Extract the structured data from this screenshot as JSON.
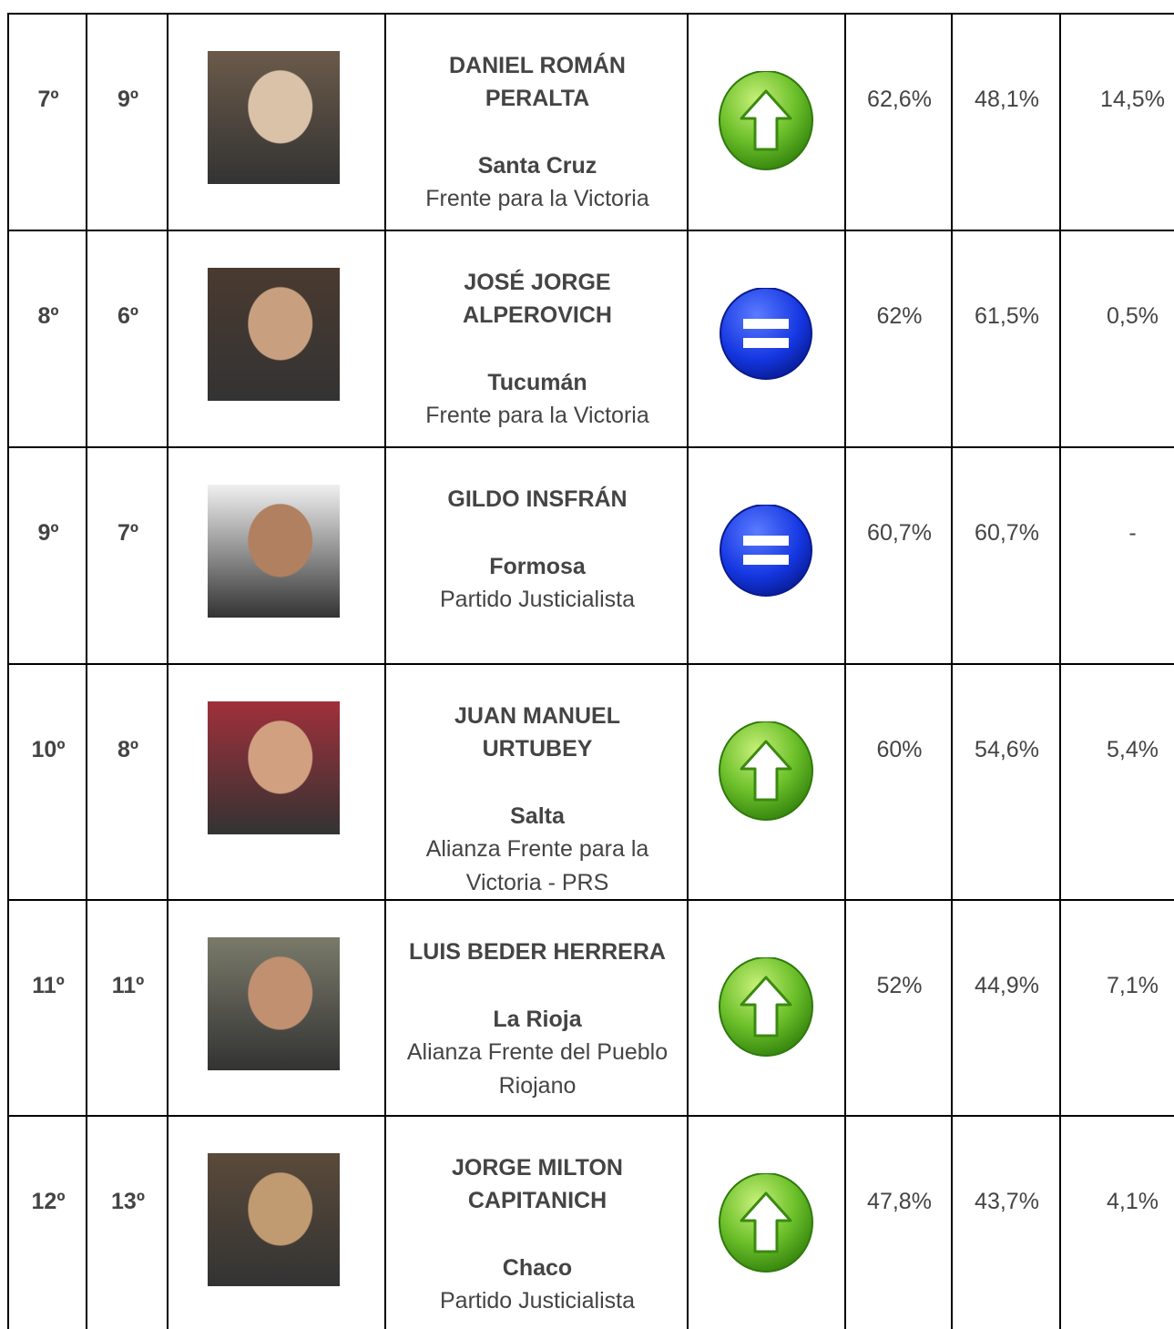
{
  "table": {
    "rows": [
      {
        "rank": "7º",
        "prev_rank": "9º",
        "name": [
          "DANIEL ROMÁN",
          "PERALTA"
        ],
        "province": "Santa Cruz",
        "party": [
          "Frente para la Victoria"
        ],
        "icon": "up",
        "current": "62,6%",
        "previous": "48,1%",
        "difference": "14,5%"
      },
      {
        "rank": "8º",
        "prev_rank": "6º",
        "name": [
          "JOSÉ JORGE",
          "ALPEROVICH"
        ],
        "province": "Tucumán",
        "party": [
          "Frente para la Victoria"
        ],
        "icon": "equal",
        "current": "62%",
        "previous": "61,5%",
        "difference": "0,5%"
      },
      {
        "rank": "9º",
        "prev_rank": "7º",
        "name": [
          "GILDO INSFRÁN"
        ],
        "province": "Formosa",
        "party": [
          "Partido Justicialista"
        ],
        "icon": "equal",
        "current": "60,7%",
        "previous": "60,7%",
        "difference": "-"
      },
      {
        "rank": "10º",
        "prev_rank": "8º",
        "name": [
          "JUAN MANUEL",
          "URTUBEY"
        ],
        "province": "Salta",
        "party": [
          "Alianza Frente para la",
          "Victoria - PRS"
        ],
        "icon": "up",
        "current": "60%",
        "previous": "54,6%",
        "difference": "5,4%"
      },
      {
        "rank": "11º",
        "prev_rank": "11º",
        "name": [
          "LUIS BEDER HERRERA"
        ],
        "province": "La Rioja",
        "party": [
          "Alianza Frente del Pueblo",
          "Riojano"
        ],
        "icon": "up",
        "current": "52%",
        "previous": "44,9%",
        "difference": "7,1%"
      },
      {
        "rank": "12º",
        "prev_rank": "13º",
        "name": [
          "JORGE MILTON",
          "CAPITANICH"
        ],
        "province": "Chaco",
        "party": [
          "Partido Justicialista"
        ],
        "icon": "up",
        "current": "47,8%",
        "previous": "43,7%",
        "difference": "4,1%"
      }
    ]
  }
}
